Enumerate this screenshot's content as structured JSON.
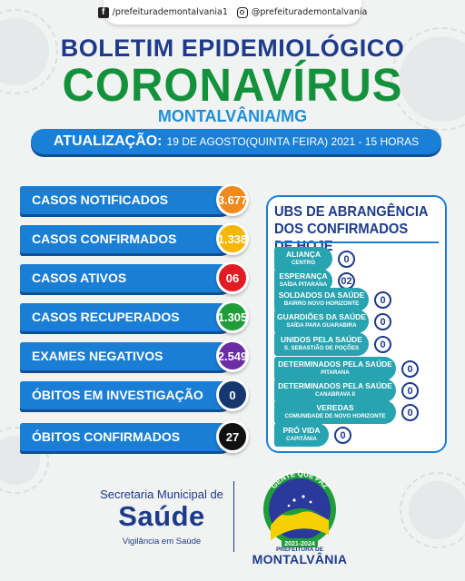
{
  "header": {
    "facebook_handle": "/prefeiturademontalvania1",
    "instagram_handle": "@prefeiturademontalvania",
    "title_line1": "BOLETIM EPIDEMIOLÓGICO",
    "title_line2": "CORONAVÍRUS",
    "location": "MONTALVÂNIA/MG",
    "update_label": "ATUALIZAÇÃO:",
    "update_date": "19 DE AGOSTO(QUINTA FEIRA) 2021 - 15 HORAS"
  },
  "stats": [
    {
      "label": "CASOS NOTIFICADOS",
      "value": "3.677",
      "color": "#f08a1c"
    },
    {
      "label": "CASOS CONFIRMADOS",
      "value": "1.338",
      "color": "#f5b700"
    },
    {
      "label": "CASOS ATIVOS",
      "value": "06",
      "color": "#e31b23"
    },
    {
      "label": "CASOS RECUPERADOS",
      "value": "1.305",
      "color": "#1f9d3a"
    },
    {
      "label": "EXAMES NEGATIVOS",
      "value": "2.549",
      "color": "#6b2ca4"
    },
    {
      "label": "ÓBITOS EM INVESTIGAÇÃO",
      "value": "0",
      "color": "#17386e"
    },
    {
      "label": "ÓBITOS CONFIRMADOS",
      "value": "27",
      "color": "#111111"
    }
  ],
  "ubs": {
    "title_line1": "UBS DE ABRANGÊNCIA",
    "title_line2": "DOS CONFIRMADOS DE HOJE",
    "items": [
      {
        "name": "ALIANÇA",
        "sub": "CENTRO",
        "count": "0"
      },
      {
        "name": "ESPERANÇA",
        "sub": "SAÍDA PITARANA",
        "count": "02"
      },
      {
        "name": "SOLDADOS DA SAÚDE",
        "sub": "BAIRRO NOVO HORIZONTE",
        "count": "0"
      },
      {
        "name": "GUARDIÕES DA SAÚDE",
        "sub": "SAÍDA PARA GUARABIRA",
        "count": "0"
      },
      {
        "name": "UNIDOS PELA SAÚDE",
        "sub": "S. SEBASTIÃO DE POÇÕES",
        "count": "0"
      },
      {
        "name": "DETERMINADOS PELA SAÚDE",
        "sub": "PITARANA",
        "count": "0"
      },
      {
        "name": "DETERMINADOS PELA SAÚDE",
        "sub": "CANABRAVA II",
        "count": "0"
      },
      {
        "name": "VEREDAS",
        "sub": "COMUNIDADE DE NOVO HORIZONTE",
        "count": "0"
      },
      {
        "name": "PRÓ VIDA",
        "sub": "CAPITÂNIA",
        "count": "0"
      }
    ]
  },
  "footer": {
    "secretaria": "Secretaria Municipal de",
    "saude": "Saúde",
    "vigilancia": "Vigilância em Saúde",
    "logo_slogan": "GENTE QUE FAZ",
    "logo_years": "2021-2024",
    "prefeitura": "PREFEITURA DE",
    "city": "MONTALVÂNIA"
  }
}
